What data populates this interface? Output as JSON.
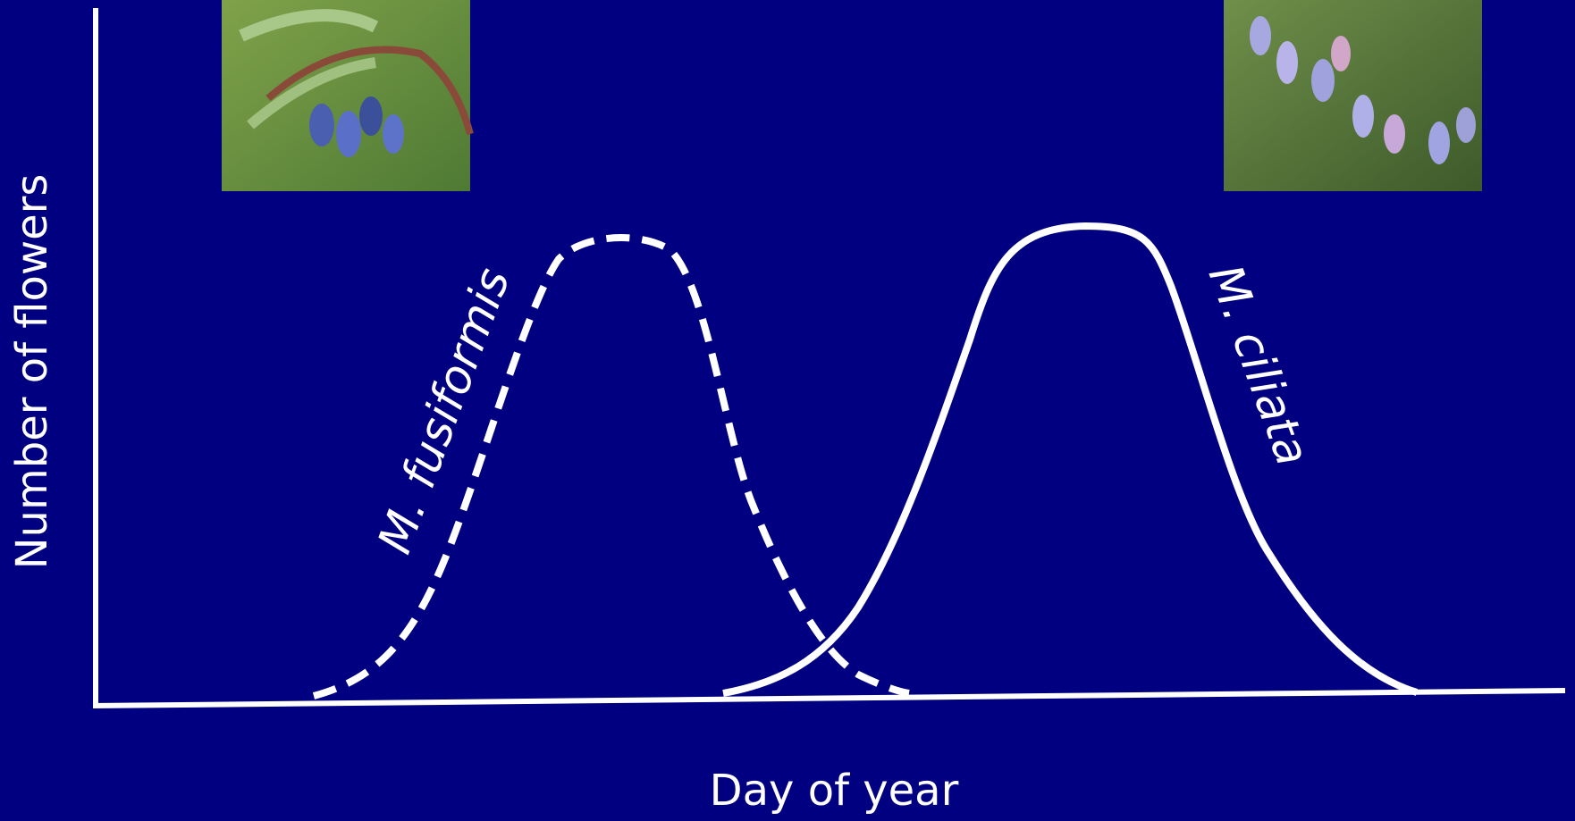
{
  "axes": {
    "y_label": "Number of flowers",
    "x_label": "Day of year"
  },
  "curves": [
    {
      "label": "M. fusiformis"
    },
    {
      "label": "M. ciliata"
    }
  ]
}
